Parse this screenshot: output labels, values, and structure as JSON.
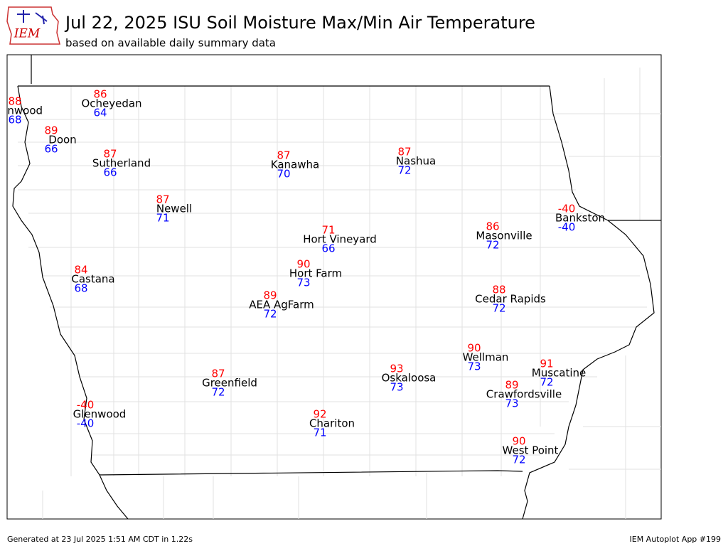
{
  "header": {
    "logo": "IEM",
    "title": "Jul 22, 2025 ISU Soil Moisture Max/Min Air Temperature",
    "subtitle": "based on available daily summary data"
  },
  "max_color": "#ff0000",
  "min_color": "#0000ff",
  "stations": [
    {
      "name": "Inwood",
      "max": 88,
      "min": 68
    },
    {
      "name": "Ocheyedan",
      "max": 86,
      "min": 64
    },
    {
      "name": "Doon",
      "max": 89,
      "min": 66
    },
    {
      "name": "Sutherland",
      "max": 87,
      "min": 66
    },
    {
      "name": "Kanawha",
      "max": 87,
      "min": 70
    },
    {
      "name": "Nashua",
      "max": 87,
      "min": 72
    },
    {
      "name": "Newell",
      "max": 87,
      "min": 71
    },
    {
      "name": "Bankston",
      "max": -40,
      "min": -40
    },
    {
      "name": "Masonville",
      "max": 86,
      "min": 72
    },
    {
      "name": "Hort Vineyard",
      "max": 71,
      "min": 66
    },
    {
      "name": "Castana",
      "max": 84,
      "min": 68
    },
    {
      "name": "Hort Farm",
      "max": 90,
      "min": 73
    },
    {
      "name": "AEA AgFarm",
      "max": 89,
      "min": 72
    },
    {
      "name": "Cedar Rapids",
      "max": 88,
      "min": 72
    },
    {
      "name": "Wellman",
      "max": 90,
      "min": 73
    },
    {
      "name": "Muscatine",
      "max": 91,
      "min": 72
    },
    {
      "name": "Oskaloosa",
      "max": 93,
      "min": 73
    },
    {
      "name": "Crawfordsville",
      "max": 89,
      "min": 73
    },
    {
      "name": "Greenfield",
      "max": 87,
      "min": 72
    },
    {
      "name": "Glenwood",
      "max": -40,
      "min": -40
    },
    {
      "name": "Chariton",
      "max": 92,
      "min": 71
    },
    {
      "name": "West Point",
      "max": 90,
      "min": 72
    }
  ],
  "footer": {
    "generated": "Generated at 23 Jul 2025 1:51 AM CDT in 1.22s",
    "app": "IEM Autoplot App #199"
  }
}
